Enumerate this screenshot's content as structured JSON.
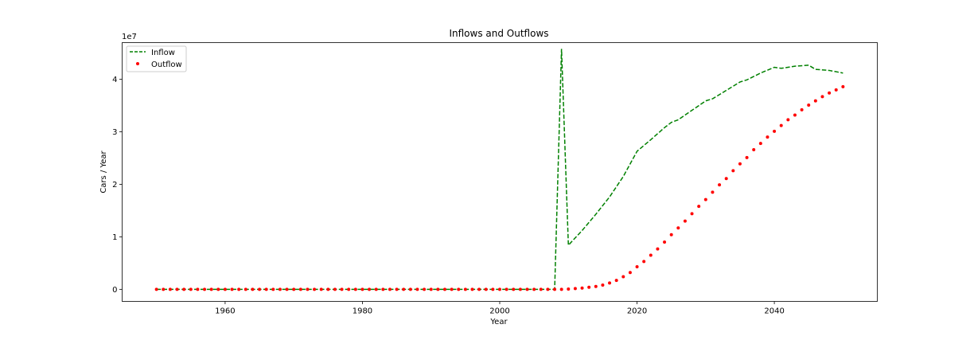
{
  "chart_data": {
    "type": "line",
    "title": "Inflows and Outflows",
    "xlabel": "Year",
    "ylabel": "Cars / Year",
    "y_offset_text": "1e7",
    "y_scale_factor": 10000000,
    "xlim": [
      1945,
      2055
    ],
    "ylim": [
      -2300000,
      47000000
    ],
    "x_ticks": [
      1960,
      1980,
      2000,
      2020,
      2040
    ],
    "x_tick_labels": [
      "1960",
      "1980",
      "2000",
      "2020",
      "2040"
    ],
    "y_ticks": [
      0,
      10000000,
      20000000,
      30000000,
      40000000
    ],
    "y_tick_labels": [
      "0",
      "1",
      "2",
      "3",
      "4"
    ],
    "grid": false,
    "legend_position": "top-left",
    "series": [
      {
        "name": "Inflow",
        "style": "dashed-line",
        "color": "#008000",
        "points": [
          [
            1950,
            0
          ],
          [
            2008,
            0
          ],
          [
            2009,
            45800000
          ],
          [
            2010,
            8400000
          ],
          [
            2012,
            11200000
          ],
          [
            2014,
            14300000
          ],
          [
            2016,
            17600000
          ],
          [
            2018,
            21500000
          ],
          [
            2020,
            26300000
          ],
          [
            2022,
            28500000
          ],
          [
            2024,
            30800000
          ],
          [
            2025,
            31800000
          ],
          [
            2026,
            32300000
          ],
          [
            2028,
            34100000
          ],
          [
            2030,
            35900000
          ],
          [
            2031,
            36300000
          ],
          [
            2033,
            37900000
          ],
          [
            2035,
            39500000
          ],
          [
            2036,
            39900000
          ],
          [
            2038,
            41200000
          ],
          [
            2040,
            42300000
          ],
          [
            2041,
            42100000
          ],
          [
            2043,
            42500000
          ],
          [
            2045,
            42700000
          ],
          [
            2046,
            41900000
          ],
          [
            2048,
            41700000
          ],
          [
            2050,
            41200000
          ]
        ]
      },
      {
        "name": "Outflow",
        "style": "dotted-markers",
        "color": "#ff0000",
        "points": [
          [
            1950,
            0
          ],
          [
            1951,
            0
          ],
          [
            1952,
            0
          ],
          [
            1953,
            0
          ],
          [
            1954,
            0
          ],
          [
            1955,
            0
          ],
          [
            1956,
            0
          ],
          [
            1957,
            0
          ],
          [
            1958,
            0
          ],
          [
            1959,
            0
          ],
          [
            1960,
            0
          ],
          [
            1961,
            0
          ],
          [
            1962,
            0
          ],
          [
            1963,
            0
          ],
          [
            1964,
            0
          ],
          [
            1965,
            0
          ],
          [
            1966,
            0
          ],
          [
            1967,
            0
          ],
          [
            1968,
            0
          ],
          [
            1969,
            0
          ],
          [
            1970,
            0
          ],
          [
            1971,
            0
          ],
          [
            1972,
            0
          ],
          [
            1973,
            0
          ],
          [
            1974,
            0
          ],
          [
            1975,
            0
          ],
          [
            1976,
            0
          ],
          [
            1977,
            0
          ],
          [
            1978,
            0
          ],
          [
            1979,
            0
          ],
          [
            1980,
            0
          ],
          [
            1981,
            0
          ],
          [
            1982,
            0
          ],
          [
            1983,
            0
          ],
          [
            1984,
            0
          ],
          [
            1985,
            0
          ],
          [
            1986,
            0
          ],
          [
            1987,
            0
          ],
          [
            1988,
            0
          ],
          [
            1989,
            0
          ],
          [
            1990,
            0
          ],
          [
            1991,
            0
          ],
          [
            1992,
            0
          ],
          [
            1993,
            0
          ],
          [
            1994,
            0
          ],
          [
            1995,
            0
          ],
          [
            1996,
            0
          ],
          [
            1997,
            0
          ],
          [
            1998,
            0
          ],
          [
            1999,
            0
          ],
          [
            2000,
            0
          ],
          [
            2001,
            0
          ],
          [
            2002,
            0
          ],
          [
            2003,
            0
          ],
          [
            2004,
            0
          ],
          [
            2005,
            0
          ],
          [
            2006,
            0
          ],
          [
            2007,
            0
          ],
          [
            2008,
            0
          ],
          [
            2009,
            0
          ],
          [
            2010,
            50000
          ],
          [
            2011,
            150000
          ],
          [
            2012,
            250000
          ],
          [
            2013,
            400000
          ],
          [
            2014,
            550000
          ],
          [
            2015,
            800000
          ],
          [
            2016,
            1200000
          ],
          [
            2017,
            1700000
          ],
          [
            2018,
            2400000
          ],
          [
            2019,
            3200000
          ],
          [
            2020,
            4300000
          ],
          [
            2021,
            5300000
          ],
          [
            2022,
            6500000
          ],
          [
            2023,
            7700000
          ],
          [
            2024,
            9000000
          ],
          [
            2025,
            10400000
          ],
          [
            2026,
            11700000
          ],
          [
            2027,
            13000000
          ],
          [
            2028,
            14400000
          ],
          [
            2029,
            15800000
          ],
          [
            2030,
            17100000
          ],
          [
            2031,
            18500000
          ],
          [
            2032,
            19900000
          ],
          [
            2033,
            21100000
          ],
          [
            2034,
            22600000
          ],
          [
            2035,
            23900000
          ],
          [
            2036,
            25100000
          ],
          [
            2037,
            26600000
          ],
          [
            2038,
            27800000
          ],
          [
            2039,
            29000000
          ],
          [
            2040,
            30100000
          ],
          [
            2041,
            31200000
          ],
          [
            2042,
            32300000
          ],
          [
            2043,
            33200000
          ],
          [
            2044,
            34200000
          ],
          [
            2045,
            35100000
          ],
          [
            2046,
            35900000
          ],
          [
            2047,
            36700000
          ],
          [
            2048,
            37400000
          ],
          [
            2049,
            38000000
          ],
          [
            2050,
            38600000
          ]
        ]
      }
    ]
  }
}
